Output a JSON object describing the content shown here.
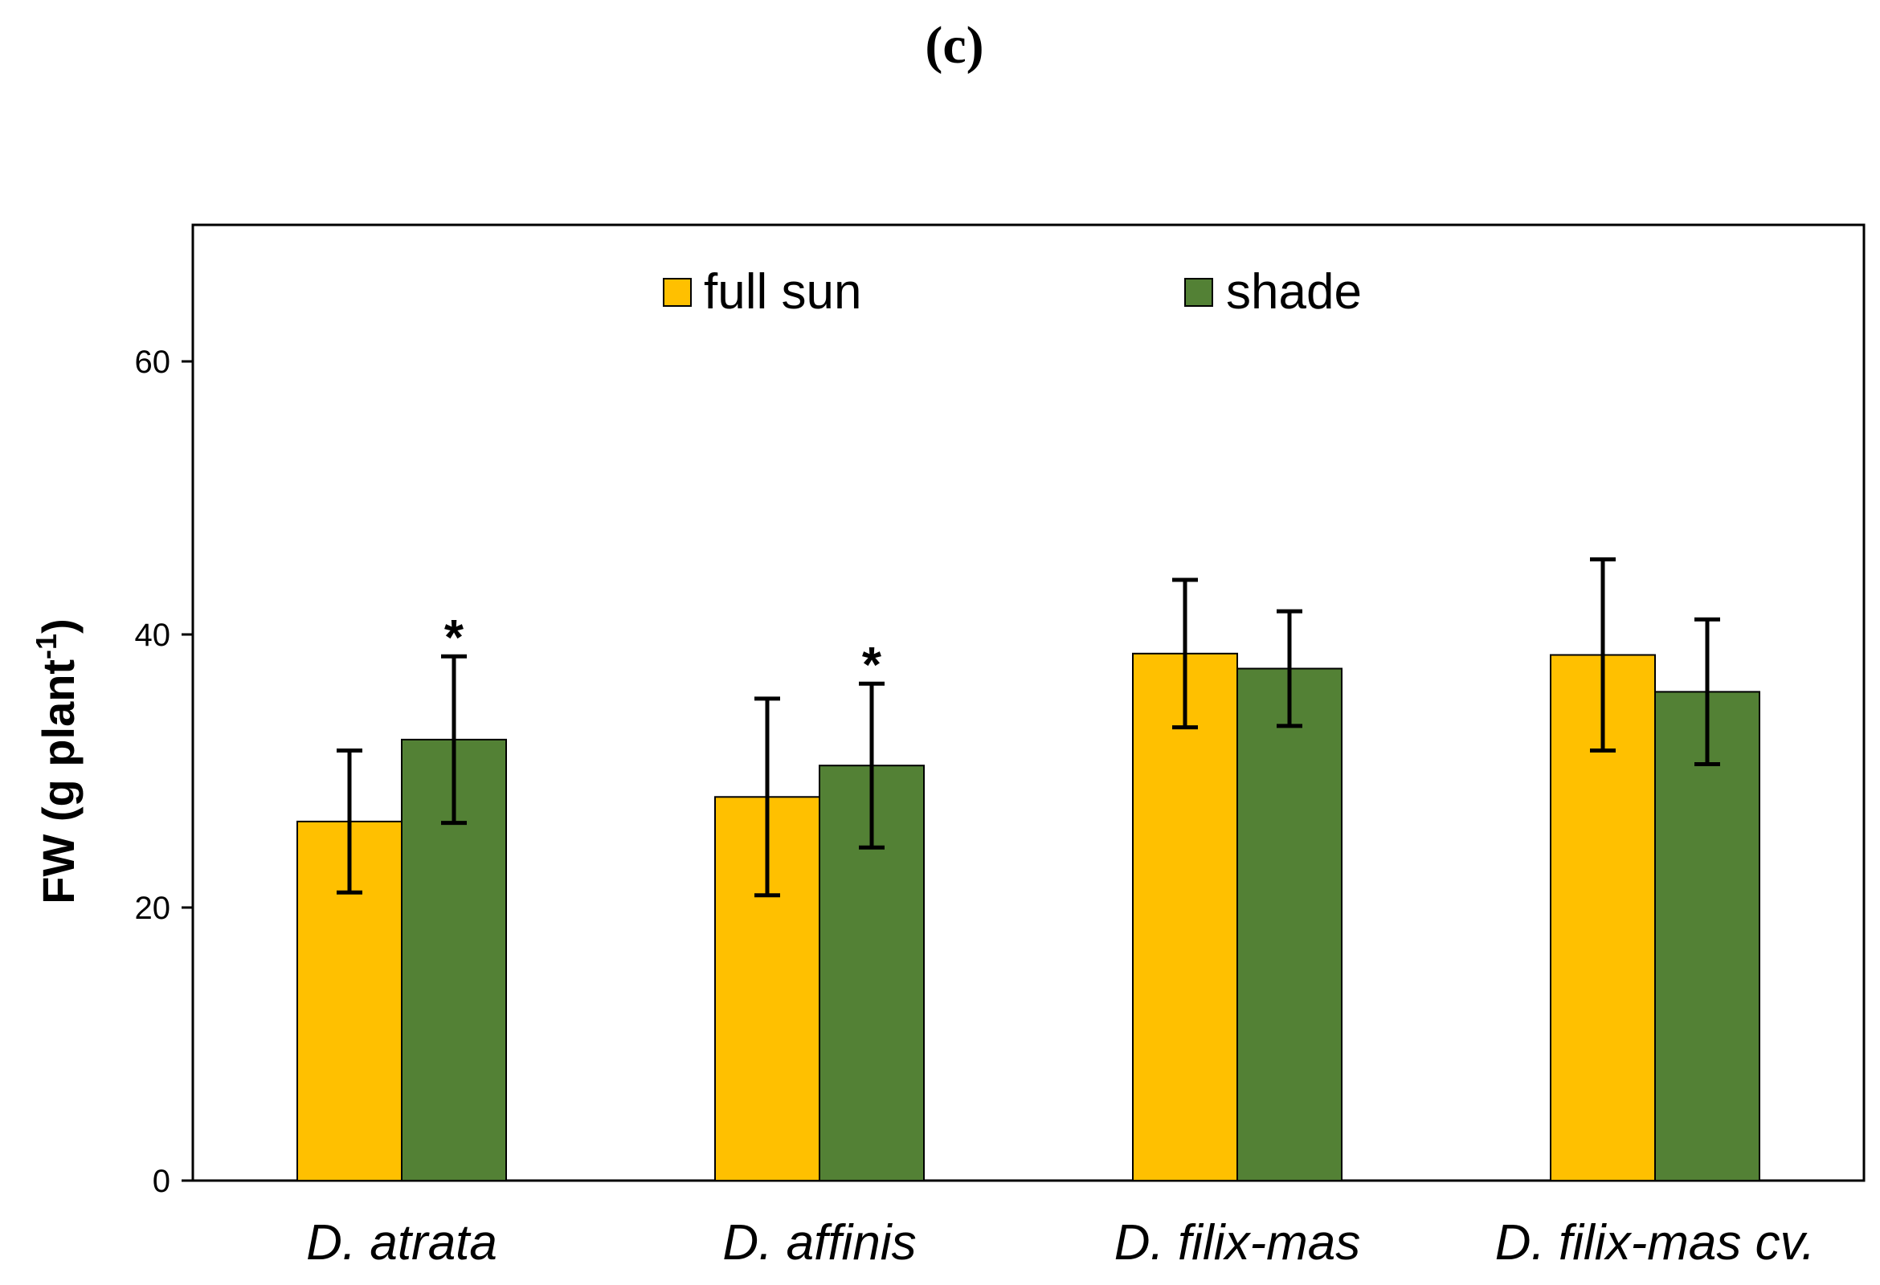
{
  "panel_label": "(c)",
  "chart_data": {
    "type": "bar",
    "title": "",
    "xlabel": "",
    "ylabel": "FW (g plant",
    "ylabel_superscript": "-1",
    "ylabel_close": ")",
    "ylim": [
      0,
      70
    ],
    "yticks": [
      0,
      20,
      40,
      60
    ],
    "grid": false,
    "legend_position": "top-center",
    "categories": [
      "D. atrata",
      "D. affinis",
      "D. filix-mas",
      "D. filix-mas cv."
    ],
    "series": [
      {
        "name": "full sun",
        "color": "#FFC000",
        "values": [
          26.3,
          28.1,
          38.6,
          38.5
        ],
        "errors": [
          5.2,
          7.2,
          5.4,
          7.0
        ]
      },
      {
        "name": "shade",
        "color": "#538135",
        "values": [
          32.3,
          30.4,
          37.5,
          35.8
        ],
        "errors": [
          6.1,
          6.0,
          4.2,
          5.3
        ]
      }
    ],
    "annotations": [
      {
        "category_index": 0,
        "series_index": 1,
        "text": "*"
      },
      {
        "category_index": 1,
        "series_index": 1,
        "text": "*"
      }
    ]
  }
}
